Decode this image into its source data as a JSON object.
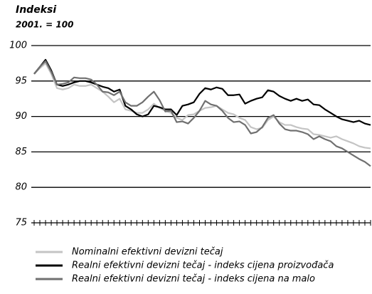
{
  "chart_data": {
    "type": "line",
    "title": "Indeksi",
    "subtitle": "2001. = 100",
    "categories": [
      null,
      null,
      null,
      null,
      null,
      null,
      null,
      null,
      null,
      null,
      null,
      null,
      null,
      null,
      null,
      null,
      null,
      null,
      null,
      null,
      null,
      null,
      null,
      null,
      null,
      null,
      null,
      null,
      null,
      null,
      null,
      null,
      null,
      null,
      null,
      null,
      null,
      null,
      null,
      null,
      null,
      null,
      null,
      null,
      null,
      null,
      null,
      null,
      null,
      null,
      null,
      null,
      null,
      null,
      null,
      null,
      null,
      null,
      null,
      null
    ],
    "ylim": [
      75,
      100
    ],
    "yticks": [
      75,
      80,
      85,
      90,
      95,
      100
    ],
    "grid": true,
    "series": [
      {
        "name": "Nominalni efektivni devizni tečaj",
        "color": "#c4c4c4",
        "values": [
          96,
          96.8,
          97.5,
          96,
          94,
          93.8,
          94,
          94.5,
          94.3,
          94.3,
          94.5,
          94,
          93.5,
          92.8,
          92,
          92.5,
          91,
          90.8,
          90.5,
          90.5,
          91,
          91.8,
          91.2,
          90.8,
          90.5,
          89.8,
          89.5,
          90.2,
          90.3,
          90.8,
          91.2,
          91.3,
          91.5,
          91,
          90.5,
          90.3,
          89.8,
          89.5,
          88.5,
          88.2,
          88.4,
          89.5,
          90,
          89.2,
          88.8,
          88.8,
          88.5,
          88.3,
          88.2,
          87.5,
          87.4,
          87.2,
          87,
          87.2,
          86.8,
          86.5,
          86.2,
          85.8,
          85.6,
          85.5
        ]
      },
      {
        "name": "Realni efektivni devizni tečaj - indeks cijena proizvođača",
        "color": "#000000",
        "values": [
          96,
          97,
          98,
          96.5,
          94.5,
          94.3,
          94.5,
          94.8,
          95,
          95,
          94.8,
          94.5,
          94.2,
          94,
          93.5,
          93.8,
          91.5,
          91,
          90.3,
          90,
          90.3,
          91.5,
          91.3,
          91,
          91,
          90.2,
          91.5,
          91.7,
          92,
          93.2,
          94,
          93.8,
          94.1,
          93.9,
          93,
          93,
          93.1,
          91.8,
          92.2,
          92.5,
          92.7,
          93.7,
          93.5,
          92.9,
          92.5,
          92.2,
          92.5,
          92.2,
          92.4,
          91.7,
          91.6,
          91,
          90.5,
          90,
          89.6,
          89.4,
          89.2,
          89.4,
          89,
          88.8
        ]
      },
      {
        "name": "Realni efektivni devizni tečaj - indeks cijena na malo",
        "color": "#707070",
        "values": [
          96,
          97,
          97.8,
          96.3,
          94.5,
          94.6,
          94.8,
          95.5,
          95.4,
          95.4,
          95.2,
          94.5,
          93.5,
          93.4,
          93,
          93.5,
          92,
          91.5,
          91.5,
          92,
          92.8,
          93.5,
          92.3,
          90.7,
          90.8,
          89.2,
          89.3,
          89,
          89.8,
          90.8,
          92.2,
          91.7,
          91.5,
          90.8,
          89.8,
          89.2,
          89.3,
          88.8,
          87.6,
          87.8,
          88.5,
          89.8,
          90.2,
          89,
          88.2,
          88,
          88,
          87.8,
          87.5,
          86.8,
          87.2,
          86.8,
          86.5,
          85.8,
          85.5,
          85,
          84.5,
          84,
          83.6,
          83
        ]
      }
    ]
  }
}
